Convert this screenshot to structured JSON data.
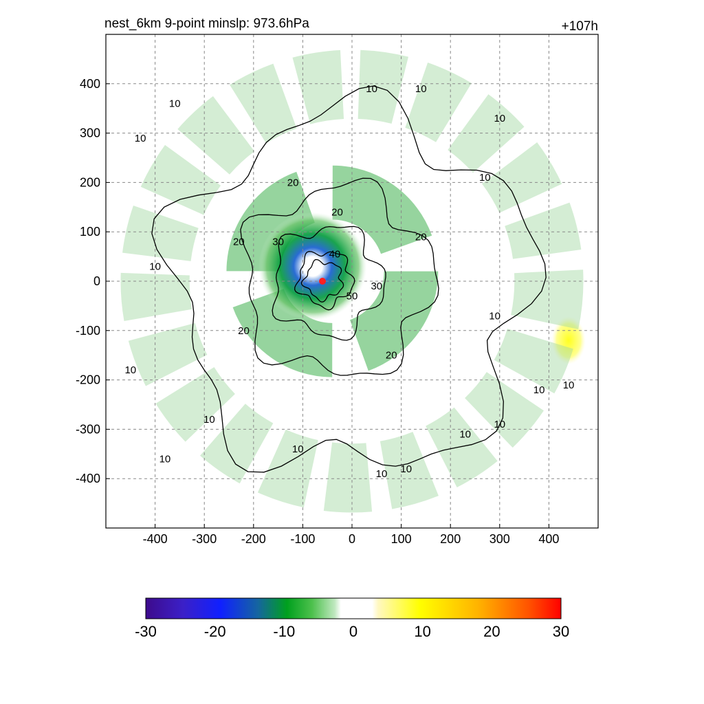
{
  "chart_data": {
    "type": "heatmap",
    "title_left": "nest_6km  9-point minslp: 973.6hPa",
    "title_right": "+107h",
    "xlabel": "",
    "ylabel": "",
    "xlim": [
      -500,
      500
    ],
    "ylim": [
      -500,
      500
    ],
    "x_ticks": [
      -400,
      -300,
      -200,
      -100,
      0,
      100,
      200,
      300,
      400
    ],
    "y_ticks": [
      400,
      300,
      200,
      100,
      0,
      -100,
      -200,
      -300,
      -400
    ],
    "grid": "dashed",
    "storm_center": [
      -60,
      0
    ],
    "shaded_field": {
      "colormap_range": [
        -30,
        30
      ],
      "colorbar_ticks": [
        -30,
        -20,
        -10,
        0,
        10,
        20,
        30
      ],
      "regions": [
        {
          "kind": "negative-spiral",
          "cx": -40,
          "cy": 20,
          "r_inner": 60,
          "r_outer": 260,
          "value": -10
        },
        {
          "kind": "negative-core",
          "cx": -80,
          "cy": 30,
          "r_inner": 30,
          "r_outer": 110,
          "value": -20
        },
        {
          "kind": "positive-patch",
          "cx": 440,
          "cy": -120,
          "r": 35,
          "value": 10
        },
        {
          "kind": "negative-rim",
          "cx": 0,
          "cy": 0,
          "r_inner": 330,
          "r_outer": 470,
          "value": -5
        }
      ]
    },
    "contours": [
      {
        "level": 10,
        "shape": "ring",
        "cx": 0,
        "cy": -20,
        "r": 360
      },
      {
        "level": 20,
        "shape": "ring",
        "cx": -30,
        "cy": 0,
        "r": 190
      },
      {
        "level": 30,
        "shape": "ring",
        "cx": -50,
        "cy": 0,
        "r": 110
      },
      {
        "level": 40,
        "shape": "ring",
        "cx": -55,
        "cy": 5,
        "r": 55
      },
      {
        "level": 50,
        "shape": "ring",
        "cx": -58,
        "cy": 2,
        "r": 38
      }
    ],
    "contour_labels": [
      {
        "text": "10",
        "x": -430,
        "y": 290
      },
      {
        "text": "10",
        "x": -360,
        "y": 360
      },
      {
        "text": "10",
        "x": 40,
        "y": 390
      },
      {
        "text": "10",
        "x": 140,
        "y": 390
      },
      {
        "text": "10",
        "x": 300,
        "y": 330
      },
      {
        "text": "10",
        "x": 270,
        "y": 210
      },
      {
        "text": "10",
        "x": -400,
        "y": 30
      },
      {
        "text": "10",
        "x": -450,
        "y": -180
      },
      {
        "text": "10",
        "x": -290,
        "y": -280
      },
      {
        "text": "10",
        "x": -380,
        "y": -360
      },
      {
        "text": "10",
        "x": -110,
        "y": -340
      },
      {
        "text": "10",
        "x": 60,
        "y": -390
      },
      {
        "text": "10",
        "x": 110,
        "y": -380
      },
      {
        "text": "10",
        "x": 230,
        "y": -310
      },
      {
        "text": "10",
        "x": 300,
        "y": -290
      },
      {
        "text": "10",
        "x": 380,
        "y": -220
      },
      {
        "text": "10",
        "x": 440,
        "y": -210
      },
      {
        "text": "10",
        "x": 290,
        "y": -70
      },
      {
        "text": "20",
        "x": -120,
        "y": 200
      },
      {
        "text": "20",
        "x": -30,
        "y": 140
      },
      {
        "text": "20",
        "x": 140,
        "y": 90
      },
      {
        "text": "20",
        "x": -230,
        "y": 80
      },
      {
        "text": "20",
        "x": -220,
        "y": -100
      },
      {
        "text": "20",
        "x": 80,
        "y": -150
      },
      {
        "text": "30",
        "x": -150,
        "y": 80
      },
      {
        "text": "30",
        "x": 50,
        "y": -10
      },
      {
        "text": "40",
        "x": -35,
        "y": 55
      },
      {
        "text": "50",
        "x": 0,
        "y": -30
      }
    ]
  }
}
